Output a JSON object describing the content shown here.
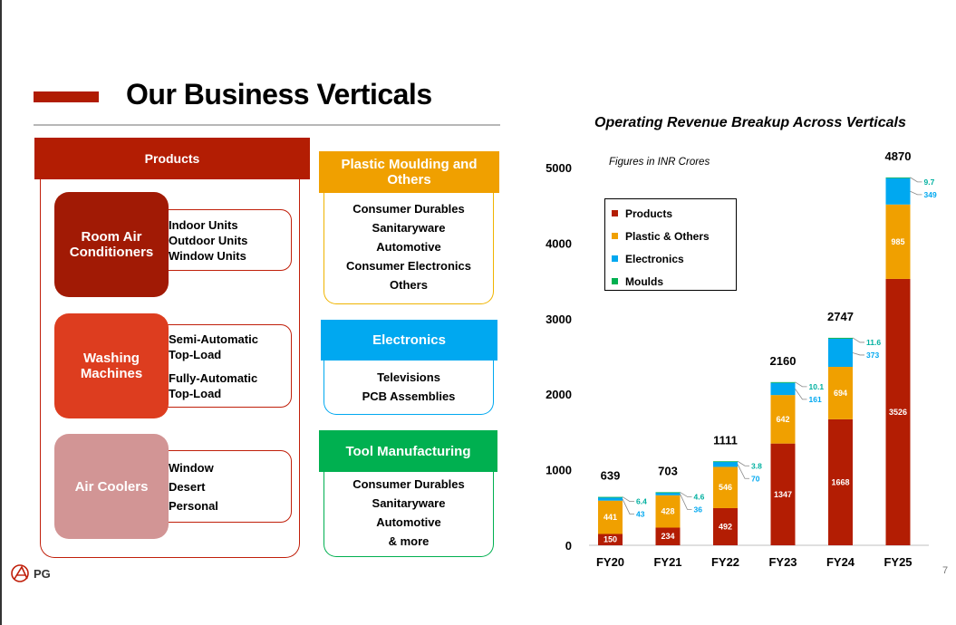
{
  "slide": {
    "title": "Our Business Verticals",
    "page_number": "7",
    "logo_text": "PG",
    "colors": {
      "accent": "#b31d03",
      "products": "#b31d03",
      "plastic": "#f0a000",
      "electronics": "#00a8f0",
      "moulds": "#00b050"
    }
  },
  "products": {
    "header": "Products",
    "categories": [
      {
        "label": "Room Air Conditioners",
        "items": [
          "Indoor Units",
          "Outdoor Units",
          "Window Units"
        ]
      },
      {
        "label": "Washing Machines",
        "items": [
          "Semi-Automatic Top-Load",
          "Fully-Automatic Top-Load"
        ]
      },
      {
        "label": "Air Coolers",
        "items": [
          "Window",
          "Desert",
          "Personal"
        ]
      }
    ]
  },
  "verticals": [
    {
      "header": "Plastic Moulding and Others",
      "items": [
        "Consumer Durables",
        "Sanitaryware",
        "Automotive",
        "Consumer Electronics",
        "Others"
      ]
    },
    {
      "header": "Electronics",
      "items": [
        "Televisions",
        "PCB Assemblies"
      ]
    },
    {
      "header": "Tool Manufacturing",
      "items": [
        "Consumer Durables",
        "Sanitaryware",
        "Automotive",
        "& more"
      ]
    }
  ],
  "chart_data": {
    "type": "bar",
    "stacked": true,
    "title": "Operating Revenue Breakup Across Verticals",
    "note": "Figures in INR Crores",
    "categories": [
      "FY20",
      "FY21",
      "FY22",
      "FY23",
      "FY24",
      "FY25"
    ],
    "series": [
      {
        "name": "Products",
        "color": "#b31d03",
        "values": [
          150,
          234,
          492,
          1347,
          1668,
          3526
        ]
      },
      {
        "name": "Plastic & Others",
        "color": "#f0a000",
        "values": [
          441,
          428,
          546,
          642,
          694,
          985
        ]
      },
      {
        "name": "Electronics",
        "color": "#00a8f0",
        "values": [
          43,
          36,
          70,
          161,
          373,
          349
        ]
      },
      {
        "name": "Moulds",
        "color": "#00b050",
        "values": [
          6.4,
          4.6,
          3.8,
          10.1,
          11.6,
          9.7
        ]
      }
    ],
    "totals": [
      639,
      703,
      1111,
      2160,
      2747,
      4870
    ],
    "ylim": [
      0,
      5000
    ],
    "yticks": [
      0,
      1000,
      2000,
      3000,
      4000,
      5000
    ],
    "legend": "top-left",
    "grid": false
  }
}
